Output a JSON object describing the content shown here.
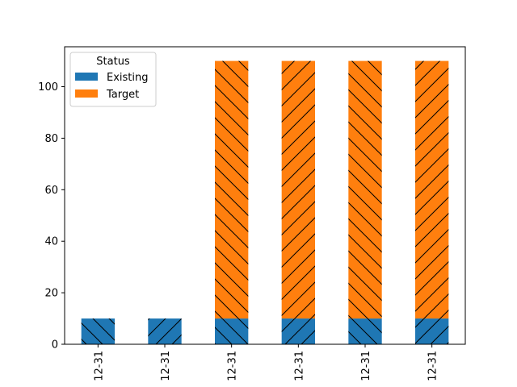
{
  "chart_data": {
    "type": "bar",
    "stacked": true,
    "categories": [
      "12-31",
      "12-31",
      "12-31",
      "12-31",
      "12-31",
      "12-31"
    ],
    "series": [
      {
        "name": "Existing",
        "values": [
          10,
          10,
          10,
          10,
          10,
          10
        ],
        "color": "#1f77b4"
      },
      {
        "name": "Target",
        "values": [
          0,
          0,
          100,
          100,
          100,
          100
        ],
        "color": "#ff7f0e"
      }
    ],
    "hatch_pattern": [
      "backslash",
      "slash",
      "backslash",
      "slash",
      "backslash",
      "slash"
    ],
    "legend_title": "Status",
    "legend_position": "upper-left",
    "yticks": [
      0,
      20,
      40,
      60,
      80,
      100
    ],
    "ylim": [
      0,
      115.5
    ],
    "xlabel": "",
    "ylabel": "",
    "title": "",
    "grid": false,
    "xtick_rotation": 90
  }
}
